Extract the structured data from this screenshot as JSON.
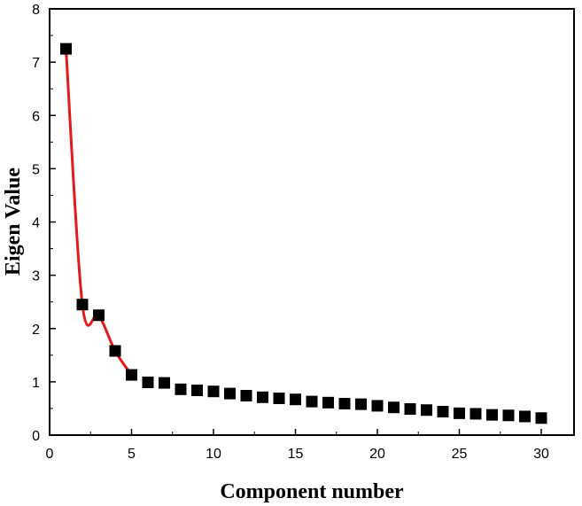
{
  "chart_data": {
    "type": "scatter",
    "xlabel": "Component number",
    "ylabel": "Eigen Value",
    "xlim": [
      0,
      32
    ],
    "ylim": [
      0,
      8
    ],
    "x_ticks": [
      "0",
      "5",
      "10",
      "15",
      "20",
      "25",
      "30"
    ],
    "y_ticks": [
      "0",
      "1",
      "2",
      "3",
      "4",
      "5",
      "6",
      "7",
      "8"
    ],
    "grid": false,
    "series": [
      {
        "marker": "square",
        "marker_color": "#000000",
        "line_color": "#e31a1c",
        "line_through_points": 5,
        "x": [
          1,
          2,
          3,
          4,
          5,
          6,
          7,
          8,
          9,
          10,
          11,
          12,
          13,
          14,
          15,
          16,
          17,
          18,
          19,
          20,
          21,
          22,
          23,
          24,
          25,
          26,
          27,
          28,
          29,
          30
        ],
        "y": [
          7.25,
          2.45,
          2.25,
          1.58,
          1.13,
          0.99,
          0.98,
          0.86,
          0.84,
          0.82,
          0.78,
          0.74,
          0.71,
          0.69,
          0.67,
          0.63,
          0.61,
          0.59,
          0.58,
          0.55,
          0.52,
          0.49,
          0.47,
          0.44,
          0.41,
          0.4,
          0.38,
          0.37,
          0.35,
          0.32
        ]
      }
    ]
  }
}
